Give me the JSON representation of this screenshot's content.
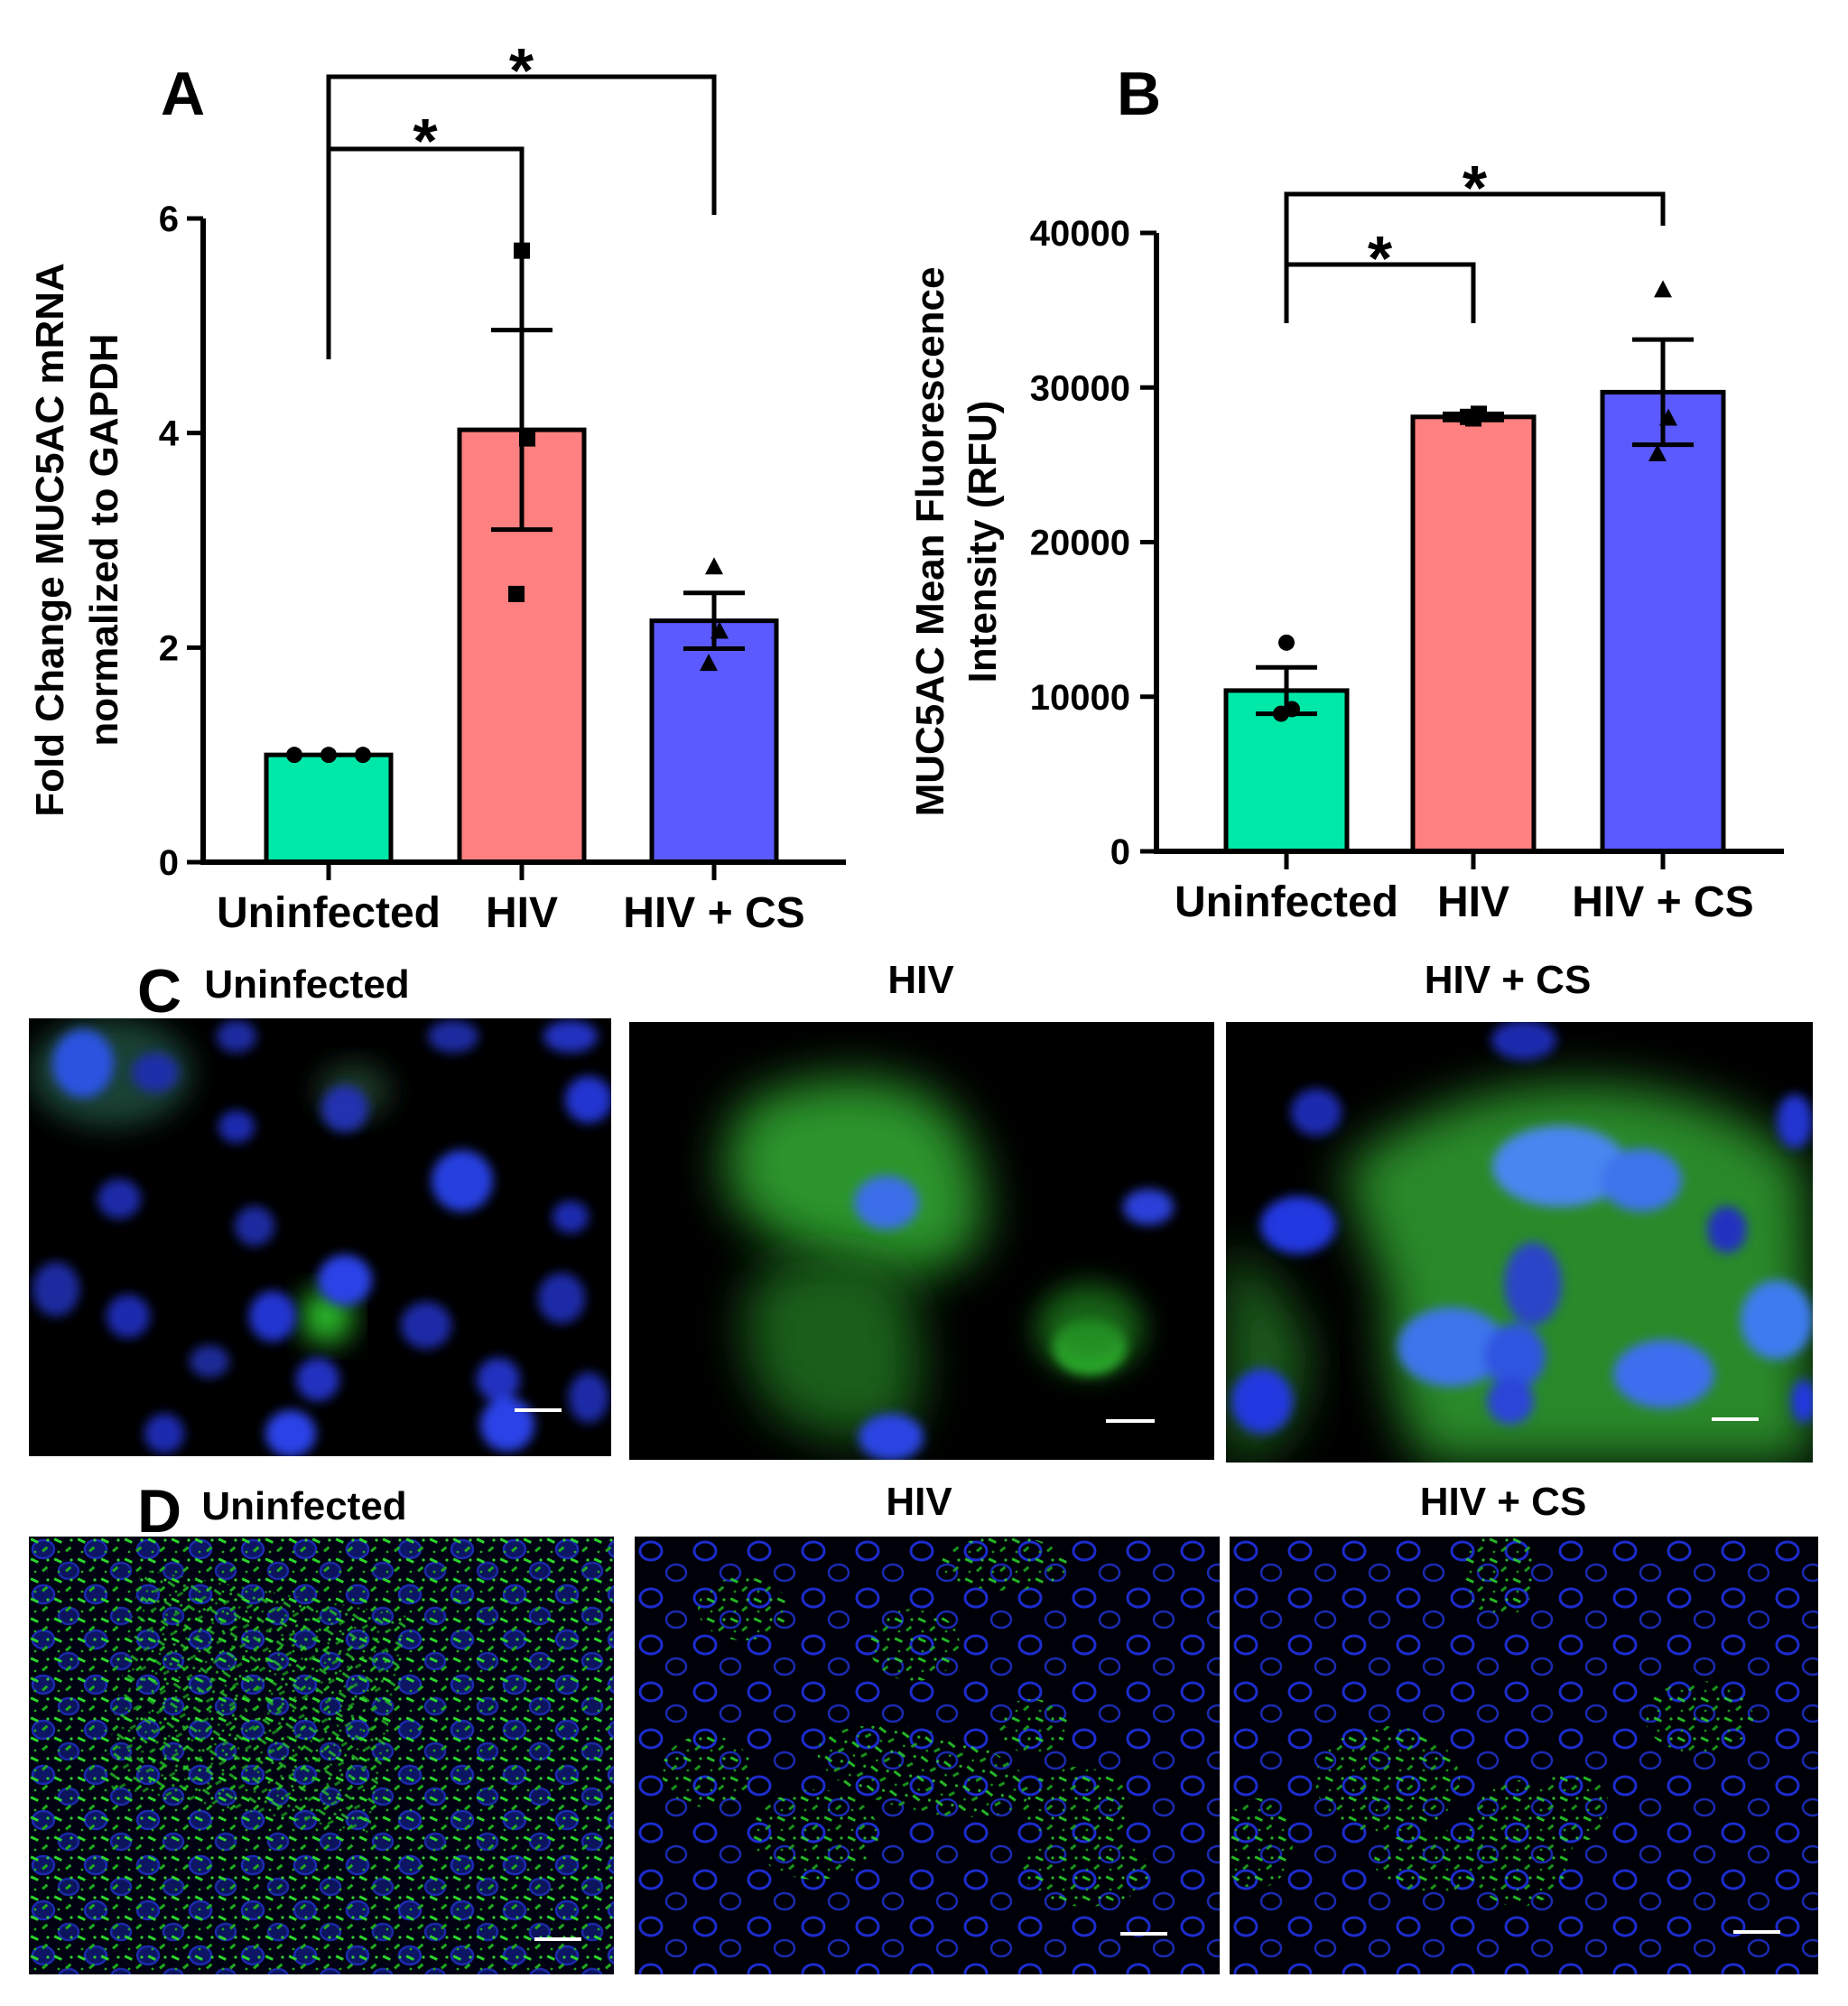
{
  "panels": {
    "A": "A",
    "B": "B",
    "C": "C",
    "D": "D"
  },
  "chart_data": [
    {
      "panel": "A",
      "type": "bar",
      "categories": [
        "Uninfected",
        "HIV",
        "HIV + CS"
      ],
      "values": [
        1.0,
        4.03,
        2.25
      ],
      "errors": [
        0.0,
        0.93,
        0.26
      ],
      "points": [
        [
          1.0,
          1.0,
          1.0
        ],
        [
          5.7,
          3.95,
          2.5
        ],
        [
          2.75,
          2.15,
          1.85
        ]
      ],
      "markers": [
        "circle",
        "square",
        "triangle"
      ],
      "colors": [
        "#00e8a8",
        "#ff8080",
        "#5a5aff"
      ],
      "ylabel_line1": "Fold Change MUC5AC mRNA",
      "ylabel_line2": "normalized to GAPDH",
      "ylim": [
        0,
        6
      ],
      "yticks": [
        "0",
        "2",
        "4",
        "6"
      ],
      "significance": [
        {
          "from": 0,
          "to": 1,
          "label": "*"
        },
        {
          "from": 0,
          "to": 2,
          "label": "*"
        }
      ]
    },
    {
      "panel": "B",
      "type": "bar",
      "categories": [
        "Uninfected",
        "HIV",
        "HIV + CS"
      ],
      "values": [
        10400,
        28100,
        29700
      ],
      "errors": [
        1500,
        200,
        3400
      ],
      "points": [
        [
          13500,
          9200,
          8900
        ],
        [
          28000,
          28300,
          28100
        ],
        [
          36300,
          28000,
          25700
        ]
      ],
      "markers": [
        "circle",
        "square",
        "triangle"
      ],
      "colors": [
        "#00e8a8",
        "#ff8080",
        "#5a5aff"
      ],
      "ylabel_line1": "MUC5AC Mean Fluorescence",
      "ylabel_line2": "Intensity (RFU)",
      "ylim": [
        0,
        40000
      ],
      "yticks": [
        "0",
        "10000",
        "20000",
        "30000",
        "40000"
      ],
      "significance": [
        {
          "from": 0,
          "to": 1,
          "label": "*"
        },
        {
          "from": 0,
          "to": 2,
          "label": "*"
        }
      ]
    }
  ],
  "micrographs": {
    "C": [
      "Uninfected",
      "HIV",
      "HIV + CS"
    ],
    "D": [
      "Uninfected",
      "HIV",
      "HIV + CS"
    ]
  }
}
